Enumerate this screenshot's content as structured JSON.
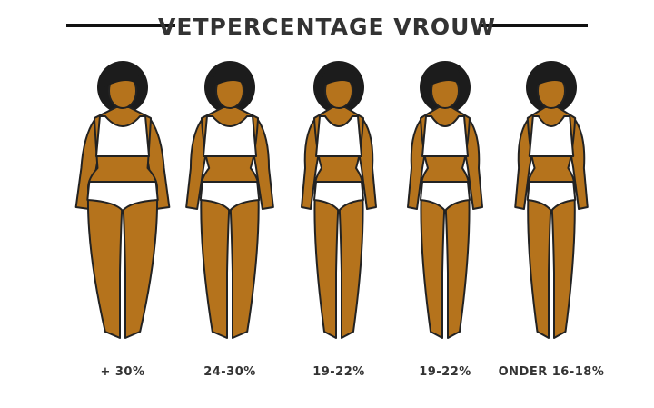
{
  "title": "VETPERCENTAGE VROUW",
  "figures": [
    {
      "label": "+ 30%"
    },
    {
      "label": "24-30%"
    },
    {
      "label": "19-22%"
    },
    {
      "label": "19-22%"
    },
    {
      "label": "ONDER 16-18%"
    }
  ]
}
